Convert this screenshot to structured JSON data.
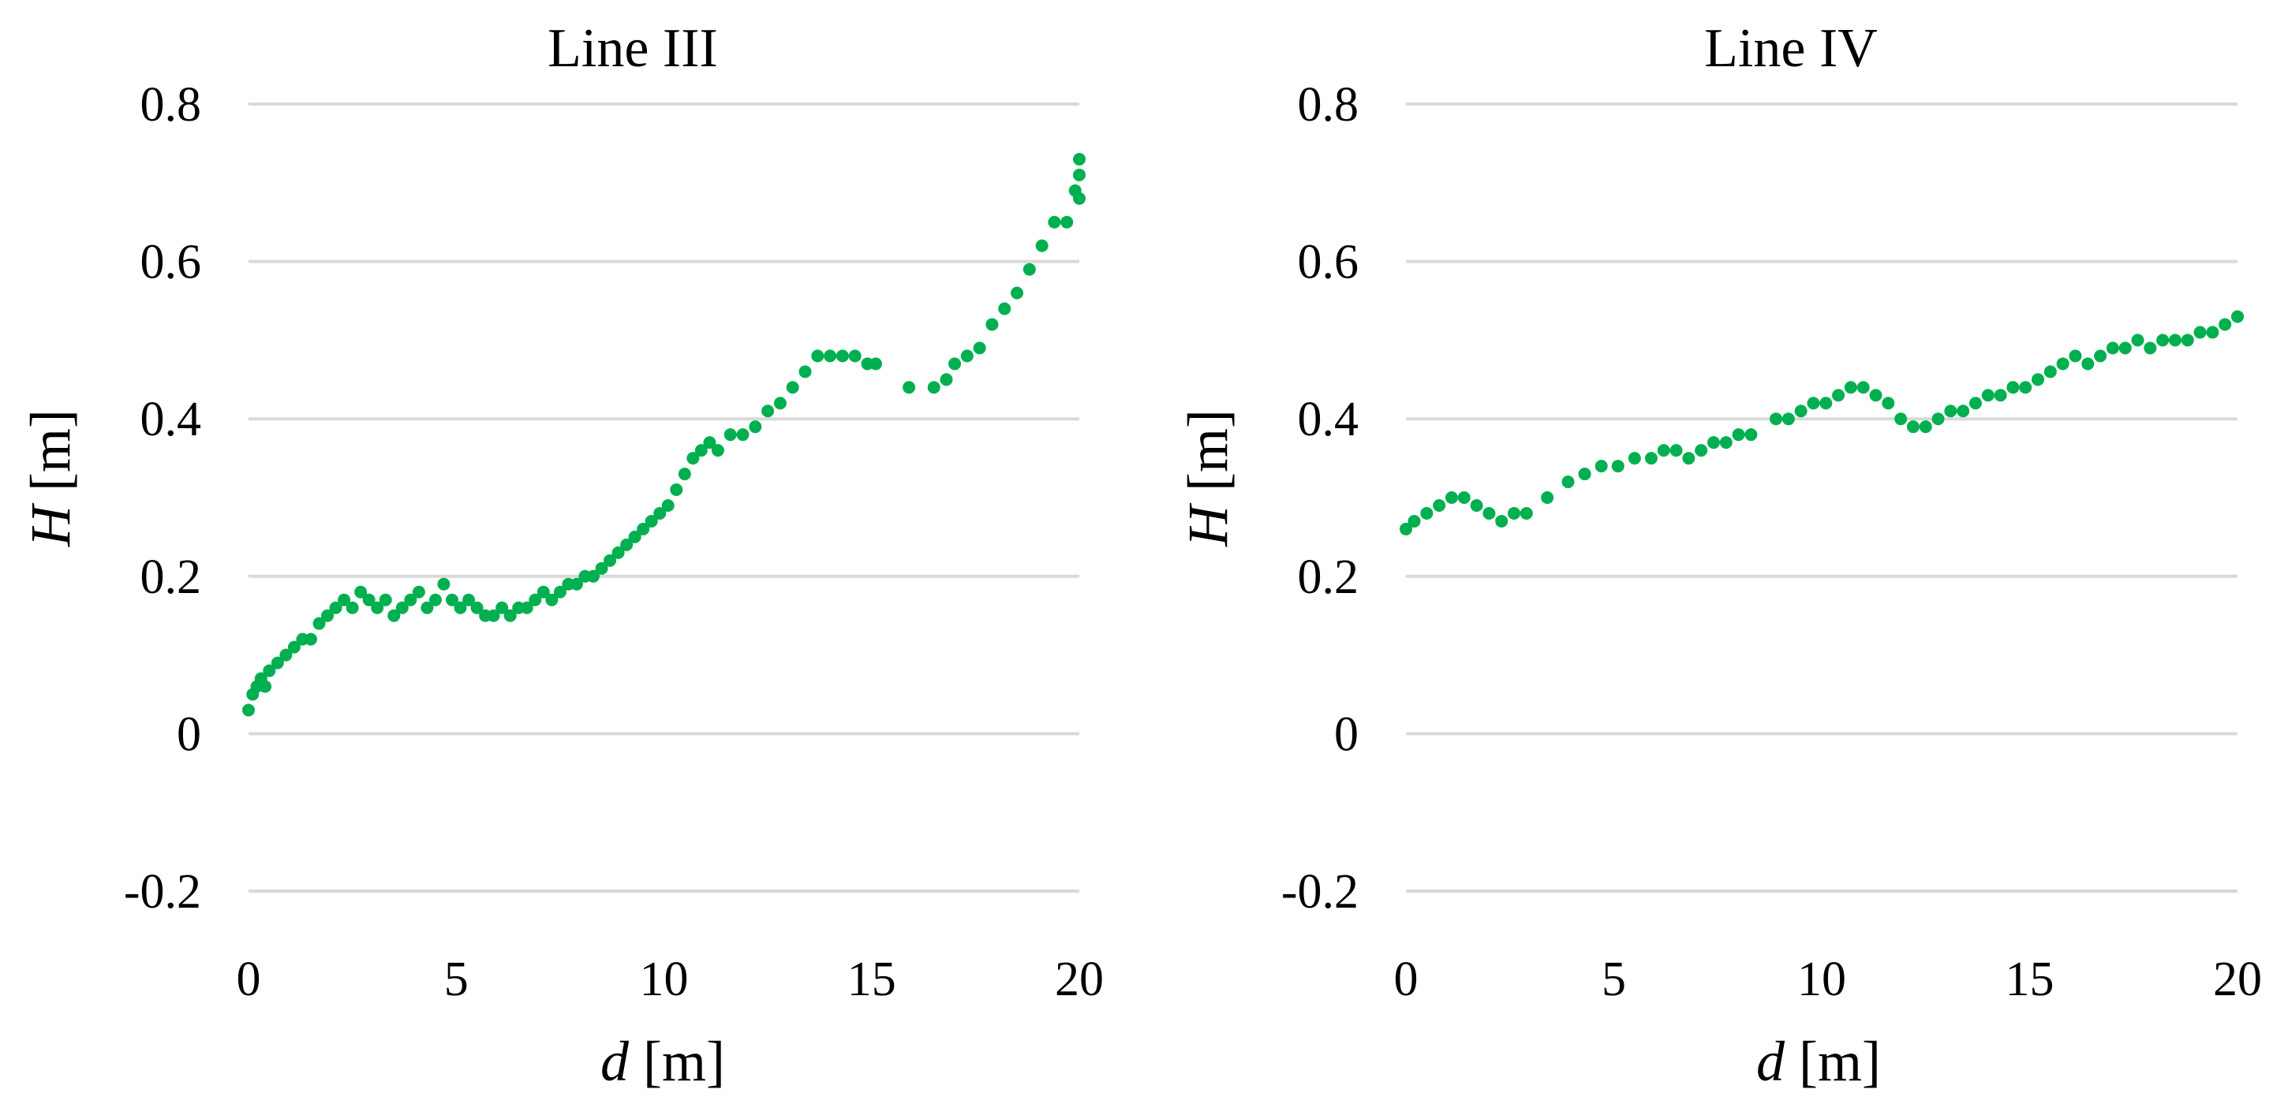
{
  "chart_data": [
    {
      "type": "scatter",
      "title": "Line III",
      "xlabel": {
        "var": "d",
        "unit": "[m]"
      },
      "ylabel": {
        "var": "H",
        "unit": "[m]"
      },
      "xlim": [
        0,
        20
      ],
      "ylim": [
        -0.2,
        0.8
      ],
      "xticks": [
        0,
        5,
        10,
        15,
        20
      ],
      "yticks": [
        -0.2,
        0,
        0.2,
        0.4,
        0.6,
        0.8
      ],
      "xtick_labels": [
        "0",
        "5",
        "10",
        "15",
        "20"
      ],
      "ytick_labels": [
        "-0.2",
        "0",
        "0.2",
        "0.4",
        "0.6",
        "0.8"
      ],
      "grid": true,
      "marker_color": "#00b050",
      "gridline_color": "#d9d9d9",
      "series": [
        {
          "name": "Line III",
          "x": [
            0.0,
            0.1,
            0.2,
            0.3,
            0.4,
            0.5,
            0.7,
            0.9,
            1.1,
            1.3,
            1.5,
            1.7,
            1.9,
            2.1,
            2.3,
            2.5,
            2.7,
            2.9,
            3.1,
            3.3,
            3.5,
            3.7,
            3.9,
            4.1,
            4.3,
            4.5,
            4.7,
            4.9,
            5.1,
            5.3,
            5.5,
            5.7,
            5.9,
            6.1,
            6.3,
            6.5,
            6.7,
            6.9,
            7.1,
            7.3,
            7.5,
            7.7,
            7.9,
            8.1,
            8.3,
            8.5,
            8.7,
            8.9,
            9.1,
            9.3,
            9.5,
            9.7,
            9.9,
            10.1,
            10.3,
            10.5,
            10.7,
            10.9,
            11.1,
            11.3,
            11.6,
            11.9,
            12.2,
            12.5,
            12.8,
            13.1,
            13.4,
            13.7,
            14.0,
            14.3,
            14.6,
            14.9,
            15.1,
            15.9,
            16.5,
            16.8,
            17.0,
            17.3,
            17.6,
            17.9,
            18.2,
            18.5,
            18.8,
            19.1,
            19.4,
            19.7,
            19.9,
            20.0,
            20.0,
            20.0
          ],
          "y": [
            0.03,
            0.05,
            0.06,
            0.07,
            0.06,
            0.08,
            0.09,
            0.1,
            0.11,
            0.12,
            0.12,
            0.14,
            0.15,
            0.16,
            0.17,
            0.16,
            0.18,
            0.17,
            0.16,
            0.17,
            0.15,
            0.16,
            0.17,
            0.18,
            0.16,
            0.17,
            0.19,
            0.17,
            0.16,
            0.17,
            0.16,
            0.15,
            0.15,
            0.16,
            0.15,
            0.16,
            0.16,
            0.17,
            0.18,
            0.17,
            0.18,
            0.19,
            0.19,
            0.2,
            0.2,
            0.21,
            0.22,
            0.23,
            0.24,
            0.25,
            0.26,
            0.27,
            0.28,
            0.29,
            0.31,
            0.33,
            0.35,
            0.36,
            0.37,
            0.36,
            0.38,
            0.38,
            0.39,
            0.41,
            0.42,
            0.44,
            0.46,
            0.48,
            0.48,
            0.48,
            0.48,
            0.47,
            0.47,
            0.44,
            0.44,
            0.45,
            0.47,
            0.48,
            0.49,
            0.52,
            0.54,
            0.56,
            0.59,
            0.62,
            0.65,
            0.65,
            0.69,
            0.71,
            0.68,
            0.73
          ]
        }
      ]
    },
    {
      "type": "scatter",
      "title": "Line IV",
      "xlabel": {
        "var": "d",
        "unit": "[m]"
      },
      "ylabel": {
        "var": "H",
        "unit": "[m]"
      },
      "xlim": [
        0,
        20
      ],
      "ylim": [
        -0.2,
        0.8
      ],
      "xticks": [
        0,
        5,
        10,
        15,
        20
      ],
      "yticks": [
        -0.2,
        0,
        0.2,
        0.4,
        0.6,
        0.8
      ],
      "xtick_labels": [
        "0",
        "5",
        "10",
        "15",
        "20"
      ],
      "ytick_labels": [
        "-0.2",
        "0",
        "0.2",
        "0.4",
        "0.6",
        "0.8"
      ],
      "grid": true,
      "marker_color": "#00b050",
      "gridline_color": "#d9d9d9",
      "series": [
        {
          "name": "Line IV",
          "x": [
            0.0,
            0.2,
            0.5,
            0.8,
            1.1,
            1.4,
            1.7,
            2.0,
            2.3,
            2.6,
            2.9,
            3.4,
            3.9,
            4.3,
            4.7,
            5.1,
            5.5,
            5.9,
            6.2,
            6.5,
            6.8,
            7.1,
            7.4,
            7.7,
            8.0,
            8.3,
            8.9,
            9.2,
            9.5,
            9.8,
            10.1,
            10.4,
            10.7,
            11.0,
            11.3,
            11.6,
            11.9,
            12.2,
            12.5,
            12.8,
            13.1,
            13.4,
            13.7,
            14.0,
            14.3,
            14.6,
            14.9,
            15.2,
            15.5,
            15.8,
            16.1,
            16.4,
            16.7,
            17.0,
            17.3,
            17.6,
            17.9,
            18.2,
            18.5,
            18.8,
            19.1,
            19.4,
            19.7,
            20.0
          ],
          "y": [
            0.26,
            0.27,
            0.28,
            0.29,
            0.3,
            0.3,
            0.29,
            0.28,
            0.27,
            0.28,
            0.28,
            0.3,
            0.32,
            0.33,
            0.34,
            0.34,
            0.35,
            0.35,
            0.36,
            0.36,
            0.35,
            0.36,
            0.37,
            0.37,
            0.38,
            0.38,
            0.4,
            0.4,
            0.41,
            0.42,
            0.42,
            0.43,
            0.44,
            0.44,
            0.43,
            0.42,
            0.4,
            0.39,
            0.39,
            0.4,
            0.41,
            0.41,
            0.42,
            0.43,
            0.43,
            0.44,
            0.44,
            0.45,
            0.46,
            0.47,
            0.48,
            0.47,
            0.48,
            0.49,
            0.49,
            0.5,
            0.49,
            0.5,
            0.5,
            0.5,
            0.51,
            0.51,
            0.52,
            0.53
          ]
        }
      ]
    }
  ]
}
